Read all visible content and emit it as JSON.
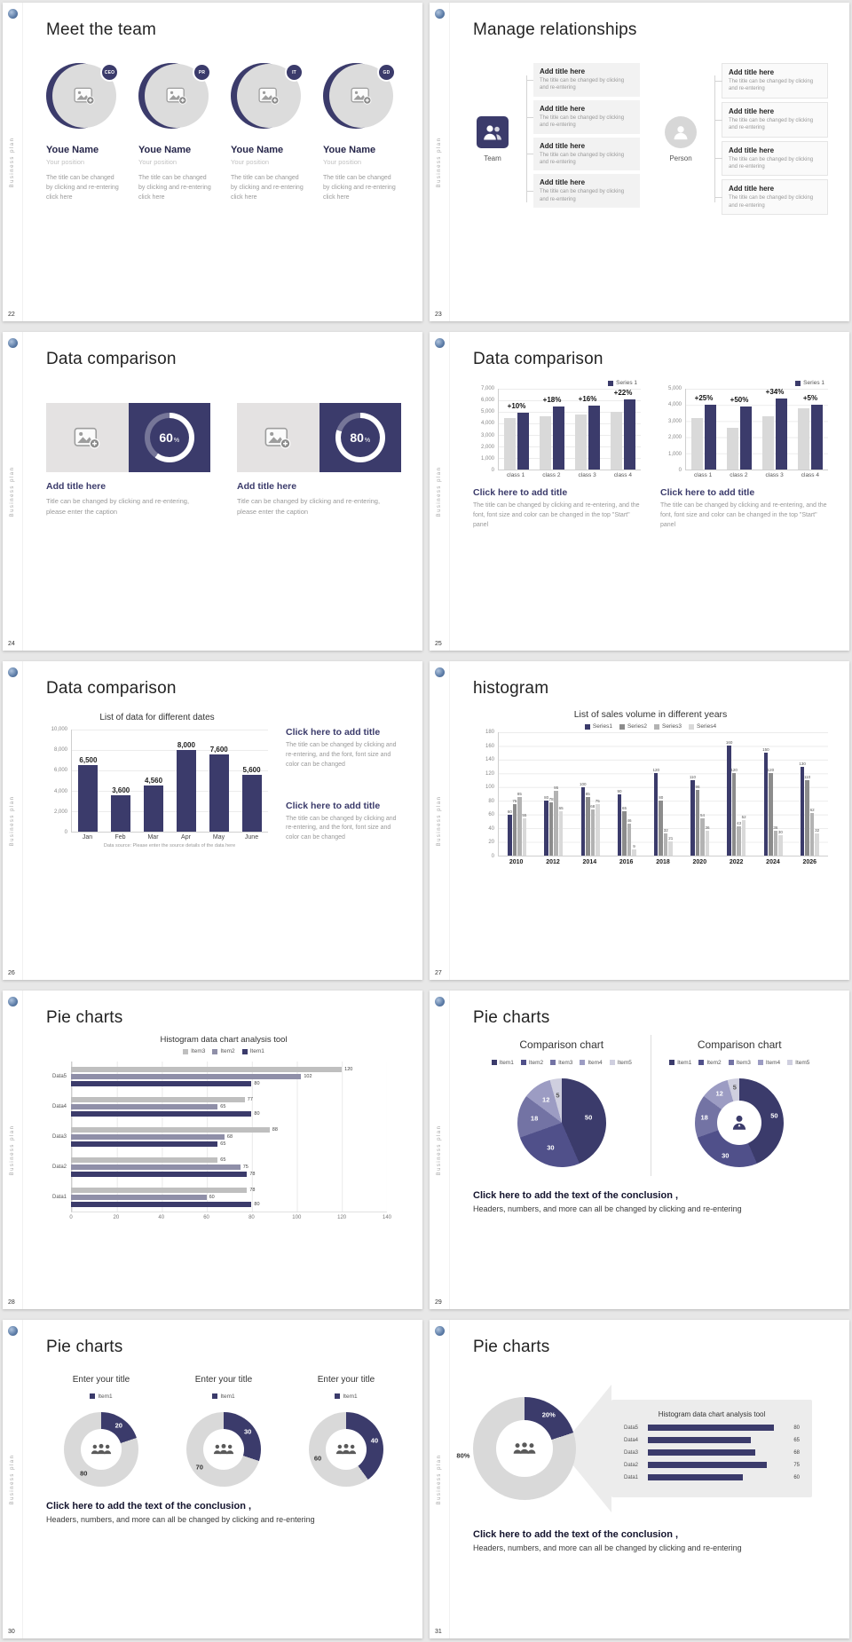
{
  "theme": {
    "accent": "#3b3b6b",
    "bar_gray": "#d9d9d9",
    "panel_gray": "#ececec"
  },
  "common": {
    "vertical_text": "Business plan",
    "conclusion_bold": "Click here to add the text of the conclusion ,",
    "conclusion_text": "Headers, numbers, and more can all be changed by clicking and re-entering"
  },
  "s22": {
    "number": "22",
    "title": "Meet the team",
    "members": [
      {
        "badge": "CEO",
        "name": "Youe Name",
        "position": "Your position",
        "desc": "The title can be changed by clicking and re-entering click here"
      },
      {
        "badge": "PR",
        "name": "Youe Name",
        "position": "Your position",
        "desc": "The title can be changed by clicking and re-entering click here"
      },
      {
        "badge": "IT",
        "name": "Youe Name",
        "position": "Your position",
        "desc": "The title can be changed by clicking and re-entering click here"
      },
      {
        "badge": "GD",
        "name": "Youe Name",
        "position": "Your position",
        "desc": "The title can be changed by clicking and re-entering click here"
      }
    ]
  },
  "s23": {
    "number": "23",
    "title": "Manage relationships",
    "team_label": "Team",
    "person_label": "Person",
    "box_title": "Add title here",
    "box_desc": "The title can be changed by clicking and re-entering"
  },
  "s24": {
    "number": "24",
    "title": "Data comparison",
    "blocks": [
      {
        "percent": "60",
        "title": "Add title here",
        "desc": "Title can be changed by clicking and re-entering, please enter the caption"
      },
      {
        "percent": "80",
        "title": "Add title here",
        "desc": "Title can be changed by clicking and re-entering, please enter the caption"
      }
    ]
  },
  "s25": {
    "number": "25",
    "title": "Data comparison",
    "panels": [
      {
        "cta": "Click here to add title",
        "desc": "The title can be changed by clicking and re-entering, and the font, font size and color can be changed in the top \"Start\" panel"
      },
      {
        "cta": "Click here to add title",
        "desc": "The title can be changed by clicking and re-entering, and the font, font size and color can be changed in the top \"Start\" panel"
      }
    ]
  },
  "s26": {
    "number": "26",
    "title": "Data comparison",
    "blocks": [
      {
        "cta": "Click here to add title",
        "desc": "The title can be changed by clicking and re-entering, and the font, font size and color can be changed"
      },
      {
        "cta": "Click here to add title",
        "desc": "The title can be changed by clicking and re-entering, and the font, font size and color can be changed"
      }
    ]
  },
  "s27": {
    "number": "27",
    "title": "histogram"
  },
  "s28": {
    "number": "28",
    "title": "Pie charts"
  },
  "s29": {
    "number": "29",
    "title": "Pie charts",
    "panels": [
      {
        "title": "Comparison chart"
      },
      {
        "title": "Comparison chart"
      }
    ]
  },
  "s30": {
    "number": "30",
    "title": "Pie charts",
    "panels": [
      {
        "title": "Enter your title"
      },
      {
        "title": "Enter your title"
      },
      {
        "title": "Enter your title"
      }
    ]
  },
  "s31": {
    "number": "31",
    "title": "Pie charts"
  },
  "chart_data": [
    {
      "id": "s25-left",
      "type": "column",
      "legend": "Series 1",
      "ymax": 7000,
      "ytick": 1000,
      "categories": [
        "class 1",
        "class 2",
        "class 3",
        "class 4"
      ],
      "series": [
        {
          "name": "previous",
          "color": "#d9d9d9",
          "values": [
            4500,
            4600,
            4800,
            5000
          ]
        },
        {
          "name": "Series 1",
          "color": "#3b3b6b",
          "values": [
            4950,
            5430,
            5570,
            6100
          ]
        }
      ],
      "annotations": [
        "+10%",
        "+18%",
        "+16%",
        "+22%"
      ]
    },
    {
      "id": "s25-right",
      "type": "column",
      "legend": "Series 1",
      "ymax": 5000,
      "ytick": 1000,
      "categories": [
        "class 1",
        "class 2",
        "class 3",
        "class 4"
      ],
      "series": [
        {
          "name": "previous",
          "color": "#d9d9d9",
          "values": [
            3200,
            2600,
            3300,
            3800
          ]
        },
        {
          "name": "Series 1",
          "color": "#3b3b6b",
          "values": [
            4000,
            3900,
            4400,
            3990
          ]
        }
      ],
      "annotations": [
        "+25%",
        "+50%",
        "+34%",
        "+5%"
      ]
    },
    {
      "id": "s26",
      "type": "column",
      "title": "List of data for different dates",
      "ymax": 10000,
      "ytick": 2000,
      "categories": [
        "Jan",
        "Feb",
        "Mar",
        "Apr",
        "May",
        "June"
      ],
      "series": [
        {
          "name": "Series 1",
          "color": "#3b3b6b",
          "values": [
            6500,
            3600,
            4560,
            8000,
            7600,
            5600
          ]
        }
      ],
      "labels": [
        "6,500",
        "3,600",
        "4,560",
        "8,000",
        "7,600",
        "5,600"
      ],
      "note": "Data source: Please enter the source details of the data here"
    },
    {
      "id": "s27",
      "type": "column",
      "title": "List of sales volume in different years",
      "ymax": 180,
      "ytick": 20,
      "show_values": true,
      "legend_items": [
        "Series1",
        "Series2",
        "Series3",
        "Series4"
      ],
      "categories": [
        "2010",
        "2012",
        "2014",
        "2016",
        "2018",
        "2020",
        "2022",
        "2024",
        "2026"
      ],
      "series": [
        {
          "name": "Series1",
          "color": "#3b3b6b",
          "values": [
            60,
            80,
            100,
            90,
            120,
            110,
            160,
            150,
            130
          ]
        },
        {
          "name": "Series2",
          "color": "#8c8c8c",
          "values": [
            75,
            78,
            85,
            65,
            80,
            96,
            120,
            120,
            110
          ]
        },
        {
          "name": "Series3",
          "color": "#b3b3b3",
          "values": [
            85,
            95,
            68,
            46,
            32,
            54,
            43,
            36,
            62
          ]
        },
        {
          "name": "Series4",
          "color": "#d9d9d9",
          "values": [
            55,
            65,
            75,
            9,
            21,
            36,
            52,
            30,
            32
          ]
        }
      ]
    },
    {
      "id": "s28",
      "type": "hbar-grouped",
      "title": "Histogram data chart analysis tool",
      "xmax": 140,
      "xtick": 20,
      "categories": [
        "Data5",
        "Data4",
        "Data3",
        "Data2",
        "Data1"
      ],
      "series": [
        {
          "name": "Item3",
          "color": "#bfbfbf",
          "values": [
            120,
            77,
            88,
            65,
            78
          ]
        },
        {
          "name": "Item2",
          "color": "#8f8fa8",
          "values": [
            102,
            65,
            68,
            75,
            60
          ]
        },
        {
          "name": "Item1",
          "color": "#3b3b6b",
          "values": [
            80,
            80,
            65,
            78,
            80
          ]
        }
      ]
    },
    {
      "id": "s29-pie",
      "type": "pie",
      "values": [
        50,
        30,
        18,
        12,
        5
      ],
      "legend_items": [
        "Item1",
        "Item2",
        "Item3",
        "Item4",
        "Item5"
      ],
      "colors": [
        "#3b3b6b",
        "#50508a",
        "#7373a4",
        "#9c9cc3",
        "#cfcfdf"
      ],
      "label_colors": [
        "#ffffff",
        "#ffffff",
        "#ffffff",
        "#ffffff",
        "#555555"
      ],
      "label_r": 0.62
    },
    {
      "id": "s29-donut",
      "type": "donut",
      "values": [
        50,
        30,
        18,
        12,
        5
      ],
      "hole": 0.5,
      "legend_items": [
        "Item1",
        "Item2",
        "Item3",
        "Item4",
        "Item5"
      ],
      "colors": [
        "#3b3b6b",
        "#50508a",
        "#7373a4",
        "#9c9cc3",
        "#cfcfdf"
      ],
      "label_colors": [
        "#ffffff",
        "#ffffff",
        "#ffffff",
        "#ffffff",
        "#555555"
      ],
      "label_r": 0.8
    },
    {
      "id": "s30-a",
      "type": "donut",
      "values": [
        20,
        80
      ],
      "labels": [
        "20",
        "80"
      ],
      "hole": 0.55,
      "label_r": 0.8,
      "legend_items": [
        "Item1"
      ],
      "colors": [
        "#3b3b6b",
        "#d9d9d9"
      ],
      "label_colors": [
        "#ffffff",
        "#333333"
      ]
    },
    {
      "id": "s30-b",
      "type": "donut",
      "values": [
        30,
        70
      ],
      "labels": [
        "30",
        "70"
      ],
      "hole": 0.55,
      "label_r": 0.8,
      "legend_items": [
        "Item1"
      ],
      "colors": [
        "#3b3b6b",
        "#d9d9d9"
      ],
      "label_colors": [
        "#ffffff",
        "#333333"
      ]
    },
    {
      "id": "s30-c",
      "type": "donut",
      "values": [
        40,
        60
      ],
      "labels": [
        "40",
        "60"
      ],
      "hole": 0.55,
      "label_r": 0.8,
      "legend_items": [
        "Item1"
      ],
      "colors": [
        "#3b3b6b",
        "#d9d9d9"
      ],
      "label_colors": [
        "#ffffff",
        "#333333"
      ]
    },
    {
      "id": "s31-donut",
      "type": "donut",
      "values": [
        20,
        80
      ],
      "labels": [
        "20%",
        "80%"
      ],
      "hole": 0.55,
      "colors": [
        "#3b3b6b",
        "#d9d9d9"
      ],
      "label_colors": [
        "#ffffff",
        "#333333"
      ],
      "label_pos": [
        [
          36,
          0.8
        ],
        [
          263,
          1.2
        ]
      ]
    },
    {
      "id": "s31-bars",
      "type": "hbar",
      "title": "Histogram data chart analysis tool",
      "xmax": 90,
      "color": "#3b3b6b",
      "categories": [
        "Data5",
        "Data4",
        "Data3",
        "Data2",
        "Data1"
      ],
      "values": [
        80,
        65,
        68,
        75,
        60
      ]
    }
  ]
}
